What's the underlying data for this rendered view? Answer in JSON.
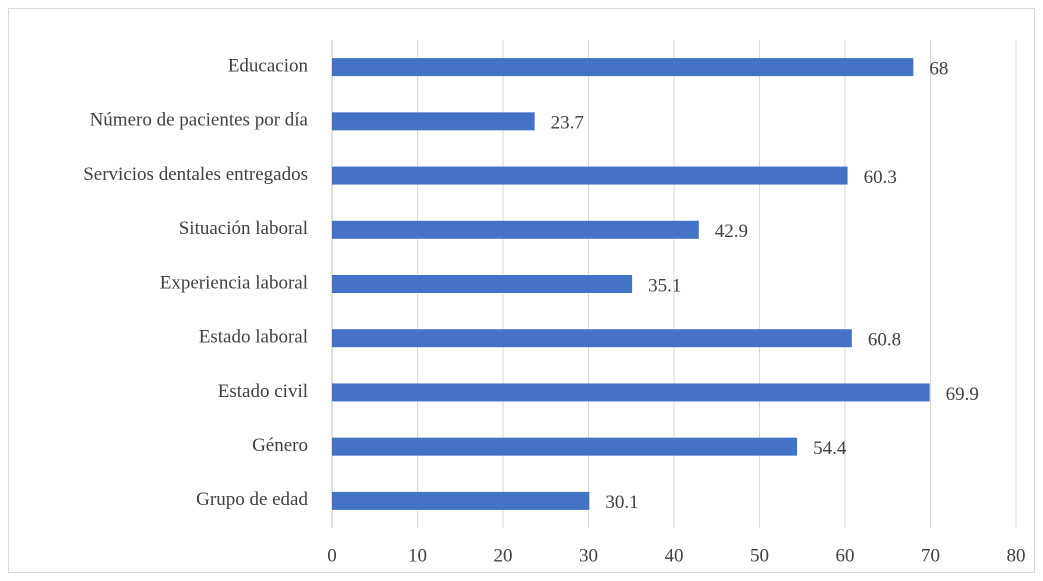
{
  "chart_data": {
    "type": "bar",
    "orientation": "horizontal",
    "categories": [
      "Educacion",
      "Número de pacientes por día",
      "Servicios dentales entregados",
      "Situación laboral",
      "Experiencia laboral",
      "Estado laboral",
      "Estado civil",
      "Género",
      "Grupo de edad"
    ],
    "values": [
      68,
      23.7,
      60.3,
      42.9,
      35.1,
      60.8,
      69.9,
      54.4,
      30.1
    ],
    "color": "#4472c4",
    "xlim": [
      0,
      80
    ],
    "xticks": [
      0,
      10,
      20,
      30,
      40,
      50,
      60,
      70,
      80
    ],
    "grid": true
  }
}
